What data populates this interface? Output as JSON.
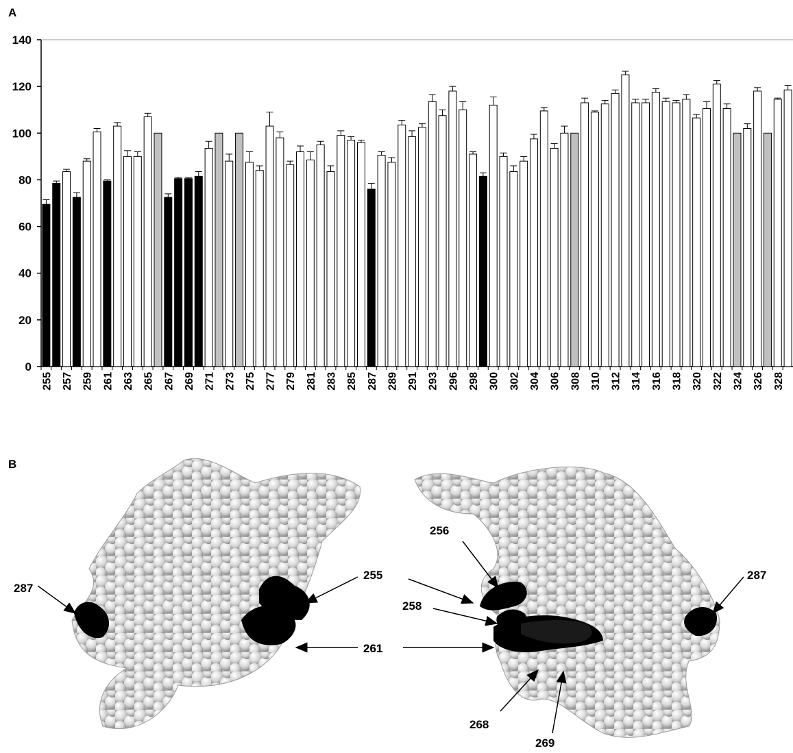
{
  "panels": {
    "a_label": "A",
    "b_label": "B"
  },
  "colors": {
    "black": "#000000",
    "gray": "#c0c0c0",
    "white": "#ffffff",
    "atom": "#d9d9d9"
  },
  "chart_data": {
    "type": "bar",
    "title": "",
    "xlabel": "",
    "ylabel": "",
    "ylim": [
      0,
      140
    ],
    "yticks": [
      0,
      20,
      40,
      60,
      80,
      100,
      120,
      140
    ],
    "grid": false,
    "legend": "none",
    "categories": [
      "255",
      "256",
      "257",
      "258",
      "259",
      "260",
      "261",
      "262",
      "263",
      "264",
      "265",
      "266",
      "267",
      "268",
      "269",
      "270",
      "271",
      "272",
      "273",
      "274",
      "275",
      "276",
      "277",
      "278",
      "279",
      "280",
      "281",
      "282",
      "283",
      "284",
      "285",
      "286",
      "287",
      "288",
      "289",
      "290",
      "291",
      "292",
      "293",
      "295",
      "296",
      "297",
      "298",
      "299",
      "300",
      "301",
      "302",
      "303",
      "304",
      "305",
      "306",
      "307",
      "308",
      "309",
      "310",
      "311",
      "312",
      "313",
      "314",
      "315",
      "316",
      "317",
      "318",
      "319",
      "320",
      "321",
      "322",
      "323",
      "324",
      "325",
      "326",
      "327",
      "328",
      "329"
    ],
    "tick_labels": [
      "255",
      "257",
      "259",
      "261",
      "263",
      "265",
      "267",
      "269",
      "271",
      "273",
      "275",
      "277",
      "279",
      "281",
      "283",
      "285",
      "287",
      "289",
      "291",
      "293",
      "296",
      "298",
      "300",
      "302",
      "304",
      "306",
      "308",
      "310",
      "312",
      "314",
      "316",
      "318",
      "320",
      "322",
      "324",
      "326",
      "328"
    ],
    "values": [
      69.5,
      78.5,
      83.5,
      72.5,
      88,
      100.5,
      79.5,
      103,
      90,
      90,
      107,
      100,
      72.5,
      80.5,
      80.5,
      81.5,
      93.5,
      100,
      88,
      100,
      87.5,
      84,
      103,
      98,
      86.5,
      92,
      88.5,
      95,
      83.5,
      99,
      97,
      96,
      76,
      90.5,
      87.5,
      103.5,
      98.5,
      102.5,
      113.5,
      107.5,
      118,
      110,
      91,
      81.5,
      112,
      90,
      83.5,
      88,
      97.5,
      109.5,
      93.5,
      100,
      100,
      113,
      109,
      112.5,
      117,
      125,
      113,
      113,
      117.5,
      113.5,
      113,
      114.5,
      106.5,
      110.5,
      121,
      110.5,
      100,
      102,
      118,
      100,
      114.5,
      118.5
    ],
    "errors": [
      2,
      1,
      1,
      2,
      1,
      1.5,
      0.5,
      1.5,
      2.5,
      2,
      1.5,
      0,
      1.5,
      0.5,
      0.5,
      2,
      3,
      0,
      3,
      0,
      4.5,
      2,
      6,
      2.5,
      1.5,
      2.5,
      3.5,
      1.5,
      2.5,
      2,
      1.5,
      1,
      2.5,
      1.5,
      2,
      2,
      2.5,
      1.5,
      3,
      2.5,
      2,
      3.5,
      1,
      1.5,
      3.5,
      1.5,
      2.5,
      2,
      2,
      1.5,
      2,
      3,
      0,
      2,
      0.5,
      1.5,
      1.5,
      1.5,
      1.5,
      1.5,
      1.5,
      1.5,
      1,
      2,
      1.5,
      3,
      1.5,
      2,
      0,
      2,
      1.5,
      0,
      0.5,
      2
    ],
    "fill_groups": [
      "black",
      "black",
      "white",
      "black",
      "white",
      "white",
      "black",
      "white",
      "white",
      "white",
      "white",
      "gray",
      "black",
      "black",
      "black",
      "black",
      "white",
      "gray",
      "white",
      "gray",
      "white",
      "white",
      "white",
      "white",
      "white",
      "white",
      "white",
      "white",
      "white",
      "white",
      "white",
      "white",
      "black",
      "white",
      "white",
      "white",
      "white",
      "white",
      "white",
      "white",
      "white",
      "white",
      "white",
      "black",
      "white",
      "white",
      "white",
      "white",
      "white",
      "white",
      "white",
      "white",
      "gray",
      "white",
      "white",
      "white",
      "white",
      "white",
      "white",
      "white",
      "white",
      "white",
      "white",
      "white",
      "white",
      "white",
      "white",
      "white",
      "gray",
      "white",
      "white",
      "gray",
      "white",
      "white"
    ]
  },
  "structure_labels": {
    "left": [
      "287",
      "255",
      "261"
    ],
    "right": [
      "256",
      "287",
      "258",
      "261",
      "268",
      "269"
    ]
  }
}
